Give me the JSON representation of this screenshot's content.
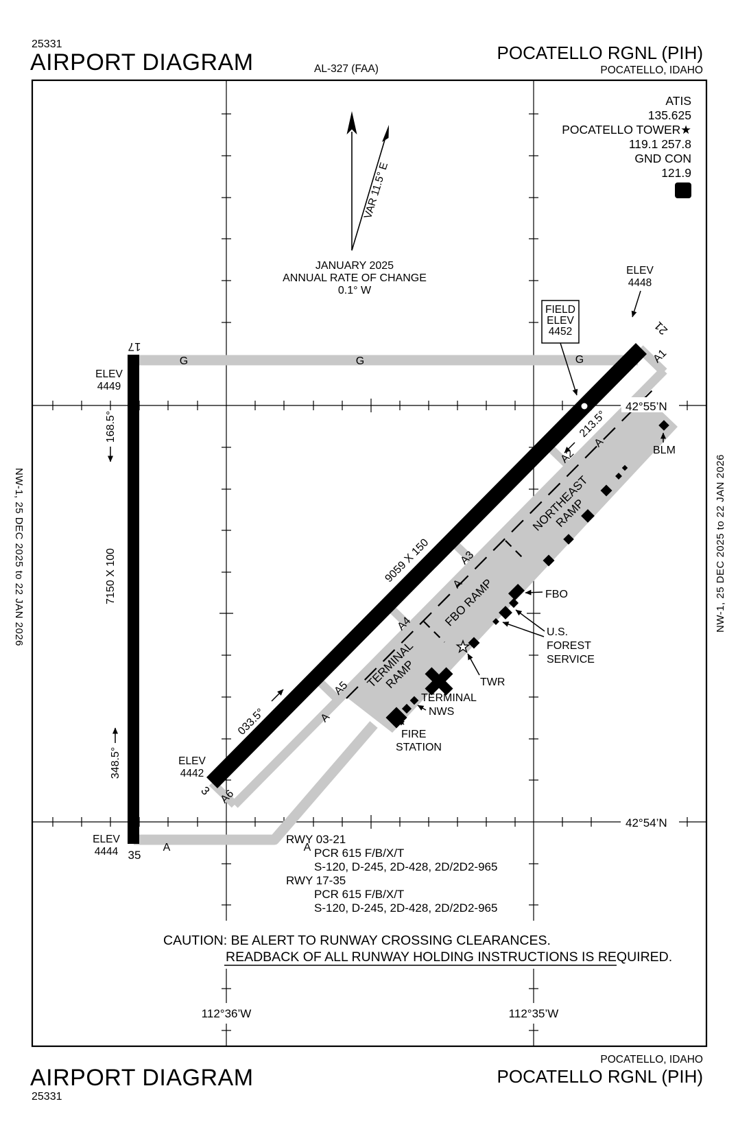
{
  "header": {
    "code": "25331",
    "title": "AIRPORT DIAGRAM",
    "al": "AL-327 (FAA)",
    "airport_name": "POCATELLO RGNL (PIH)",
    "airport_city": "POCATELLO, IDAHO"
  },
  "footer": {
    "code": "25331",
    "title": "AIRPORT DIAGRAM",
    "airport_name": "POCATELLO RGNL (PIH)",
    "airport_city": "POCATELLO, IDAHO"
  },
  "margin": {
    "edition": "NW-1,  25 DEC 2025  to  22 JAN 2026"
  },
  "comm": {
    "atis_label": "ATIS",
    "atis_freq": "135.625",
    "tower_label": "POCATELLO TOWER★",
    "tower_freqs": "119.1  257.8",
    "gnd_label": "GND CON",
    "gnd_freq": "121.9",
    "d_symbol": "D"
  },
  "north_arrow": {
    "var_label": "VAR 11.5° E",
    "date": "JANUARY 2025",
    "rate_line1": "ANNUAL RATE OF CHANGE",
    "rate_line2": "0.1° W"
  },
  "field_elev": {
    "line1": "FIELD",
    "line2": "ELEV",
    "line3": "4452"
  },
  "runways": {
    "r0321": {
      "dims": "9059 X 150",
      "num_3": "3",
      "num_21": "21",
      "hdg_ne": "033.5°",
      "hdg_sw": "213.5°"
    },
    "r1735": {
      "dims": "7150 X 100",
      "num_17": "17",
      "num_35": "35",
      "hdg_s": "168.5°",
      "hdg_n": "348.5°"
    },
    "elev_word": "ELEV",
    "elev_17": "4449",
    "elev_21": "4448",
    "elev_3": "4442",
    "elev_35": "4444"
  },
  "taxiways": {
    "g": "G",
    "a": "A",
    "a1": "A1",
    "a2": "A2",
    "a3": "A3",
    "a4": "A4",
    "a5": "A5",
    "a6": "A6"
  },
  "ramps": {
    "terminal_1": "TERMINAL",
    "terminal_2": "RAMP",
    "fbo": "FBO RAMP",
    "northeast_1": "NORTHEAST",
    "northeast_2": "RAMP"
  },
  "facilities": {
    "fbo": "FBO",
    "usfs_1": "U.S.",
    "usfs_2": "FOREST",
    "usfs_3": "SERVICE",
    "twr": "TWR",
    "terminal": "TERMINAL",
    "nws": "NWS",
    "fire_1": "FIRE",
    "fire_2": "STATION",
    "blm": "BLM"
  },
  "grid_labels": {
    "lat_n55": "42°55’N",
    "lat_n54": "42°54’N",
    "lon_w36": "112°36’W",
    "lon_w35": "112°35’W"
  },
  "notes": {
    "rwy_0": "RWY 03-21",
    "rwy_1": "PCR 615 F/B/X/T",
    "rwy_2": "S-120, D-245, 2D-428, 2D/2D2-965",
    "rwy_3": "RWY 17-35",
    "rwy_4": "PCR 615 F/B/X/T",
    "rwy_5": "S-120, D-245, 2D-428, 2D/2D2-965",
    "caution_1": "CAUTION: BE ALERT TO RUNWAY CROSSING CLEARANCES.",
    "caution_2": "READBACK OF ALL RUNWAY HOLDING INSTRUCTIONS IS REQUIRED."
  }
}
